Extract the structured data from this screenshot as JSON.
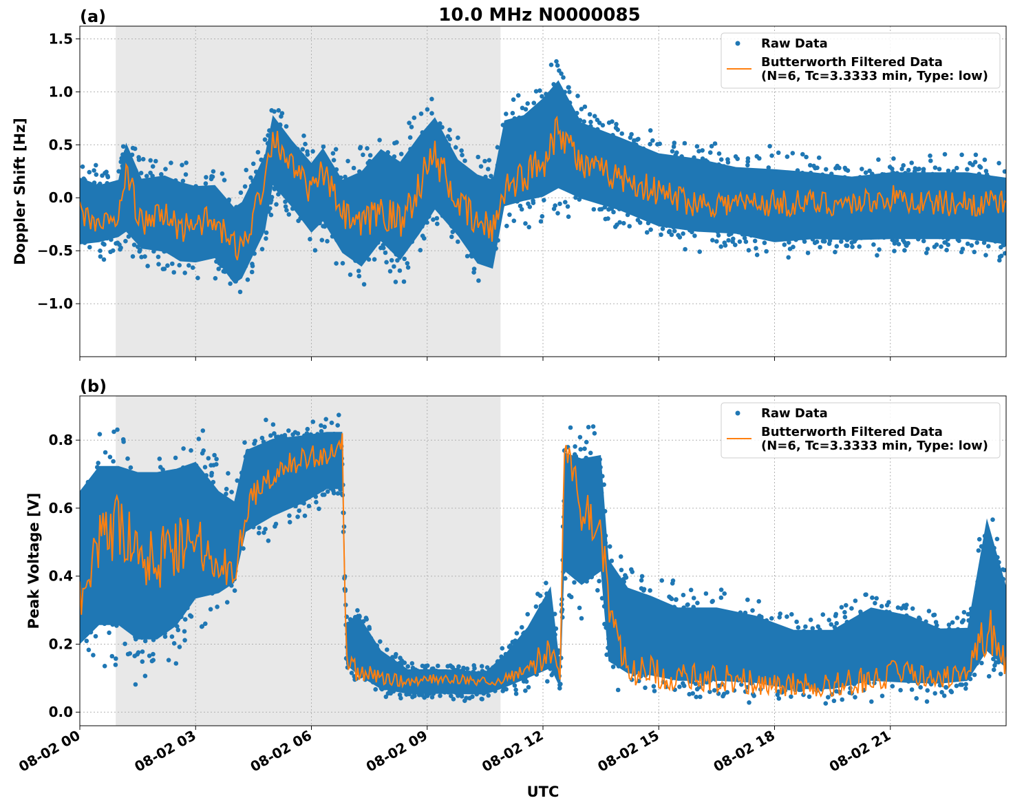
{
  "figure": {
    "title": "10.0 MHz N0000085",
    "xlabel": "UTC",
    "colors": {
      "raw": "#1f77b4",
      "filtered": "#ff7f0e",
      "shade": "#e8e8e8",
      "grid": "#b0b0b0"
    }
  },
  "chart_data": [
    {
      "type": "scatter",
      "panel_label": "(a)",
      "ylabel": "Doppler Shift [Hz]",
      "xlim": [
        0,
        24
      ],
      "ylim": [
        -1.5,
        1.62
      ],
      "yticks": [
        1.5,
        1.0,
        0.5,
        0.0,
        -0.5,
        -1.0
      ],
      "ytick_labels": [
        "1.5",
        "1.0",
        "0.5",
        "0.0",
        "−0.5",
        "−1.0"
      ],
      "xticks": [
        0,
        3,
        6,
        9,
        12,
        15,
        18,
        21
      ],
      "xtick_labels": [
        "08-02 00",
        "08-02 03",
        "08-02 06",
        "08-02 09",
        "08-02 12",
        "08-02 15",
        "08-02 18",
        "08-02 21"
      ],
      "shaded_span_hours": [
        0.93,
        10.9
      ],
      "grid": true,
      "legend": {
        "placement": "top-right",
        "entries": [
          "Raw Data",
          "Butterworth Filtered Data",
          "(N=6, Tc=3.3333 min, Type: low)"
        ]
      },
      "series": [
        {
          "name": "Raw Data",
          "kind": "band",
          "x": [
            0,
            0.5,
            1.0,
            1.2,
            1.6,
            2.2,
            2.6,
            3.0,
            3.5,
            4.0,
            4.2,
            4.8,
            5.0,
            5.5,
            6.0,
            6.3,
            6.8,
            7.3,
            7.8,
            8.3,
            8.8,
            9.2,
            9.8,
            10.3,
            10.7,
            11.0,
            11.5,
            12.0,
            12.4,
            13.0,
            14.0,
            15.0,
            16.0,
            17.0,
            18.0,
            19.0,
            20.0,
            21.0,
            22.0,
            23.0,
            24.0
          ],
          "lo": [
            -0.65,
            -0.6,
            -0.55,
            -0.6,
            -0.7,
            -0.75,
            -0.85,
            -0.85,
            -0.8,
            -1.05,
            -1.0,
            -0.55,
            -0.1,
            -0.3,
            -0.55,
            -0.45,
            -0.75,
            -0.95,
            -0.7,
            -0.9,
            -0.65,
            -0.4,
            -0.6,
            -0.9,
            -0.95,
            -0.35,
            -0.3,
            -0.3,
            -0.25,
            -0.25,
            -0.35,
            -0.5,
            -0.55,
            -0.55,
            -0.65,
            -0.6,
            -0.6,
            -0.6,
            -0.6,
            -0.6,
            -0.65
          ],
          "hi": [
            0.4,
            0.3,
            0.35,
            0.8,
            0.4,
            0.45,
            0.4,
            0.35,
            0.35,
            0.15,
            0.2,
            0.65,
            1.0,
            0.75,
            0.55,
            0.7,
            0.4,
            0.55,
            0.75,
            0.65,
            0.9,
            1.05,
            0.6,
            0.5,
            0.45,
            1.0,
            1.05,
            1.25,
            1.45,
            0.95,
            0.8,
            0.65,
            0.6,
            0.5,
            0.5,
            0.45,
            0.4,
            0.45,
            0.45,
            0.45,
            0.4
          ]
        },
        {
          "name": "Butterworth Filtered Data",
          "kind": "line",
          "x": [
            0,
            0.5,
            1.0,
            1.2,
            1.6,
            2.2,
            2.6,
            3.0,
            3.5,
            4.0,
            4.2,
            4.8,
            5.0,
            5.5,
            6.0,
            6.3,
            6.8,
            7.3,
            7.8,
            8.3,
            8.8,
            9.2,
            9.8,
            10.3,
            10.7,
            11.0,
            11.5,
            12.0,
            12.4,
            13.0,
            14.0,
            15.0,
            16.0,
            17.0,
            18.0,
            19.0,
            20.0,
            21.0,
            22.0,
            23.0,
            24.0
          ],
          "y": [
            -0.15,
            -0.25,
            -0.2,
            0.25,
            -0.25,
            -0.15,
            -0.3,
            -0.2,
            -0.25,
            -0.45,
            -0.5,
            0.2,
            0.6,
            0.3,
            0.05,
            0.25,
            -0.15,
            -0.3,
            -0.1,
            -0.25,
            0.15,
            0.4,
            -0.05,
            -0.25,
            -0.3,
            0.1,
            0.2,
            0.35,
            0.7,
            0.3,
            0.2,
            0.05,
            -0.05,
            -0.05,
            -0.05,
            -0.05,
            -0.05,
            0.0,
            -0.05,
            -0.05,
            -0.05
          ]
        }
      ]
    },
    {
      "type": "scatter",
      "panel_label": "(b)",
      "ylabel": "Peak Voltage [V]",
      "xlim": [
        0,
        24
      ],
      "ylim": [
        -0.04,
        0.93
      ],
      "yticks": [
        0.8,
        0.6,
        0.4,
        0.2,
        0.0
      ],
      "ytick_labels": [
        "0.8",
        "0.6",
        "0.4",
        "0.2",
        "0.0"
      ],
      "xticks": [
        0,
        3,
        6,
        9,
        12,
        15,
        18,
        21
      ],
      "xtick_labels": [
        "08-02 00",
        "08-02 03",
        "08-02 06",
        "08-02 09",
        "08-02 12",
        "08-02 15",
        "08-02 18",
        "08-02 21"
      ],
      "shaded_span_hours": [
        0.93,
        10.9
      ],
      "grid": true,
      "legend": {
        "placement": "top-right",
        "entries": [
          "Raw Data",
          "Butterworth Filtered Data",
          "(N=6, Tc=3.3333 min, Type: low)"
        ]
      },
      "series": [
        {
          "name": "Raw Data",
          "kind": "band",
          "x": [
            0,
            0.5,
            1.0,
            1.5,
            2.0,
            2.5,
            3.0,
            3.6,
            4.0,
            4.3,
            5.0,
            5.8,
            6.4,
            6.8,
            6.9,
            7.2,
            7.8,
            8.5,
            9.5,
            10.5,
            11.0,
            11.6,
            12.2,
            12.45,
            12.55,
            13.0,
            13.5,
            13.7,
            14.2,
            14.8,
            15.5,
            16.5,
            17.5,
            18.5,
            19.5,
            20.5,
            21.5,
            22.3,
            23.0,
            23.5,
            24.0
          ],
          "lo": [
            0.05,
            0.1,
            0.1,
            0.05,
            0.05,
            0.1,
            0.2,
            0.25,
            0.3,
            0.45,
            0.5,
            0.55,
            0.6,
            0.6,
            0.1,
            0.05,
            0.03,
            0.03,
            0.03,
            0.03,
            0.04,
            0.05,
            0.05,
            0.05,
            0.3,
            0.25,
            0.3,
            0.05,
            0.03,
            0.03,
            0.02,
            0.02,
            0.02,
            0.01,
            0.01,
            0.02,
            0.02,
            0.03,
            0.04,
            0.05,
            0.05
          ],
          "hi": [
            0.8,
            0.88,
            0.88,
            0.87,
            0.87,
            0.87,
            0.87,
            0.75,
            0.7,
            0.85,
            0.88,
            0.88,
            0.88,
            0.88,
            0.3,
            0.35,
            0.22,
            0.15,
            0.15,
            0.14,
            0.2,
            0.3,
            0.45,
            0.15,
            0.88,
            0.87,
            0.87,
            0.55,
            0.45,
            0.42,
            0.38,
            0.38,
            0.35,
            0.3,
            0.3,
            0.38,
            0.35,
            0.3,
            0.3,
            0.7,
            0.45
          ]
        },
        {
          "name": "Butterworth Filtered Data",
          "kind": "line",
          "x": [
            0,
            0.5,
            1.0,
            1.5,
            2.0,
            2.5,
            3.0,
            3.6,
            4.0,
            4.3,
            5.0,
            5.8,
            6.4,
            6.8,
            6.9,
            7.2,
            7.8,
            8.5,
            9.5,
            10.5,
            11.0,
            11.6,
            12.2,
            12.45,
            12.55,
            13.0,
            13.5,
            13.7,
            14.2,
            14.8,
            15.5,
            16.5,
            17.5,
            18.5,
            19.5,
            20.5,
            21.5,
            22.3,
            23.0,
            23.5,
            24.0
          ],
          "y": [
            0.3,
            0.5,
            0.55,
            0.45,
            0.45,
            0.5,
            0.5,
            0.45,
            0.4,
            0.6,
            0.7,
            0.75,
            0.75,
            0.8,
            0.15,
            0.12,
            0.1,
            0.09,
            0.1,
            0.09,
            0.1,
            0.13,
            0.18,
            0.1,
            0.8,
            0.6,
            0.55,
            0.3,
            0.12,
            0.12,
            0.1,
            0.1,
            0.09,
            0.08,
            0.08,
            0.1,
            0.12,
            0.1,
            0.12,
            0.25,
            0.15
          ]
        }
      ]
    }
  ]
}
